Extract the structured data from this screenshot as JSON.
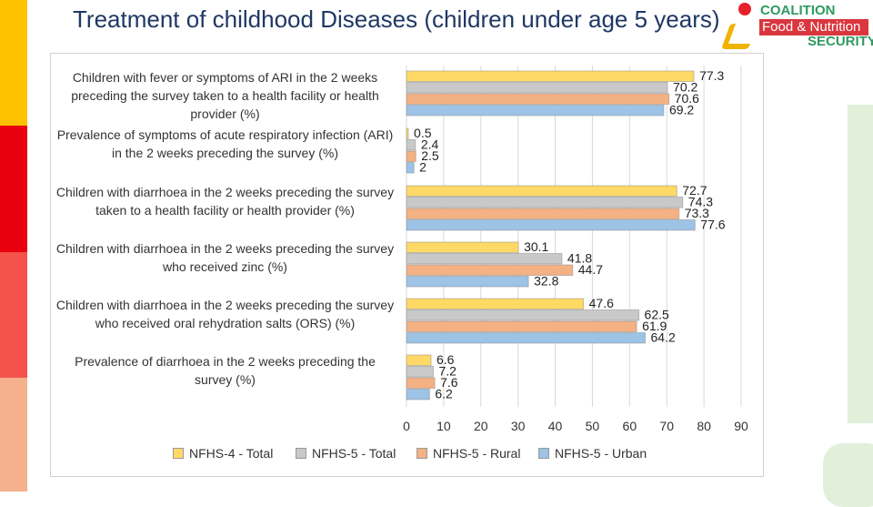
{
  "title": "Treatment of childhood Diseases (children under age 5 years)",
  "logo": {
    "line1": "COALITION",
    "line2": "Food & Nutrition",
    "line3": "SECURITY"
  },
  "colors": {
    "strip": [
      "#fcc200",
      "#e8000e",
      "#f4524a",
      "#f5b18e"
    ],
    "green": "#e2efda"
  },
  "chart_data": {
    "type": "bar",
    "orientation": "horizontal",
    "categories": [
      "Children with fever or symptoms of ARI in the 2 weeks preceding the survey taken to a health facility or health provider (%)",
      "Prevalence of symptoms of acute respiratory infection (ARI) in the 2 weeks preceding the survey (%)",
      "Children with diarrhoea in the 2 weeks preceding the survey taken to a health facility or health provider (%)",
      "Children with diarrhoea in the 2 weeks preceding the survey who received zinc (%)",
      "Children with diarrhoea in the 2 weeks preceding the survey who received oral rehydration salts (ORS) (%)",
      "Prevalence of diarrhoea in the 2 weeks preceding the survey (%)"
    ],
    "series": [
      {
        "name": "NFHS-4 - Total",
        "color": "#ffd966",
        "values": [
          77.3,
          0.5,
          72.7,
          30.1,
          47.6,
          6.6
        ]
      },
      {
        "name": "NFHS-5 - Total",
        "color": "#c9c9c9",
        "values": [
          70.2,
          2.4,
          74.3,
          41.8,
          62.5,
          7.2
        ]
      },
      {
        "name": "NFHS-5 - Rural",
        "color": "#f4b183",
        "values": [
          70.6,
          2.5,
          73.3,
          44.7,
          61.9,
          7.6
        ]
      },
      {
        "name": "NFHS-5 - Urban",
        "color": "#9dc3e6",
        "values": [
          69.2,
          2,
          77.6,
          32.8,
          64.2,
          6.2
        ]
      }
    ],
    "xlim": [
      0,
      90
    ],
    "xticks": [
      0,
      10,
      20,
      30,
      40,
      50,
      60,
      70,
      80,
      90
    ],
    "grid": true,
    "legend": "bottom"
  }
}
